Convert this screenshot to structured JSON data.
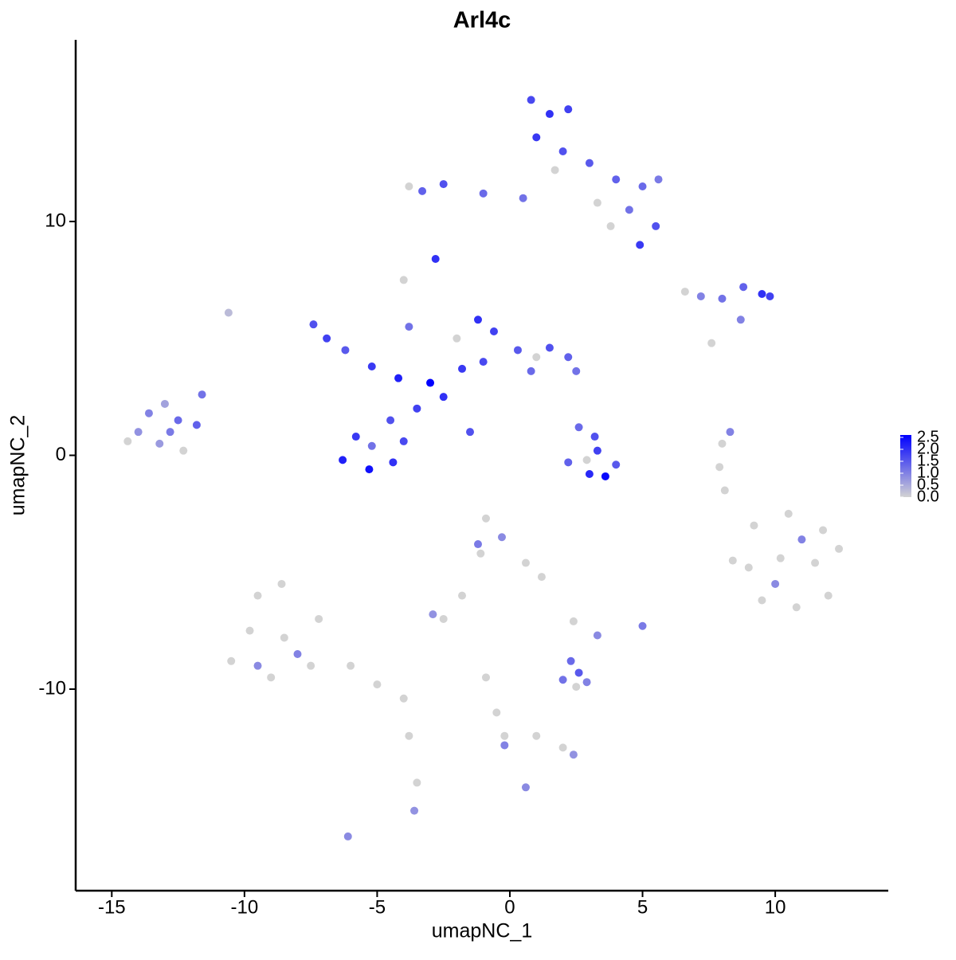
{
  "chart_data": {
    "type": "scatter",
    "title": "Arl4c",
    "x_label": "umapNC_1",
    "y_label": "umapNC_2",
    "xlim": [
      -16.36,
      14.26
    ],
    "ylim": [
      -18.62,
      17.77
    ],
    "xticks": [
      -15,
      -10,
      -5,
      0,
      5,
      10
    ],
    "yticks": [
      -10,
      0,
      10
    ],
    "color_low": "#d3d3d3",
    "color_high": "#0000ff",
    "color_lim": [
      0,
      2.6
    ],
    "color_ticks": [
      0.0,
      0.5,
      1.0,
      1.5,
      2.0,
      2.5
    ],
    "color_tick_labels": [
      "0.0",
      "0.5",
      "1.0",
      "1.5",
      "2.0",
      "2.5"
    ],
    "x": [
      9.2,
      10.5,
      11.8,
      9.0,
      10.2,
      11.5,
      12.4,
      9.5,
      10.8,
      12.0,
      8.4,
      10.0,
      11.0,
      -9.5,
      -8.6,
      -9.8,
      -8.5,
      -7.2,
      -10.5,
      -9.0,
      -7.5,
      -6.0,
      -5.0,
      -4.0,
      -3.8,
      -3.5,
      -3.6,
      -8.0,
      -9.5,
      -0.9,
      -0.3,
      -1.1,
      0.6,
      1.2,
      -1.8,
      -2.5,
      -2.9,
      -1.2,
      -0.9,
      -0.5,
      -0.2,
      1.0,
      2.0,
      2.4,
      -0.2,
      -6.1,
      0.6,
      5.0,
      3.3,
      2.4,
      -10.6,
      8.0,
      7.9,
      8.3,
      8.1,
      2.0,
      2.6,
      2.9,
      2.3,
      2.5,
      -14.0,
      -13.6,
      -13.0,
      -12.5,
      -13.2,
      -12.3,
      -14.4,
      -11.6,
      -11.8,
      -12.8,
      2.6,
      3.2,
      2.2,
      3.0,
      3.6,
      4.0,
      3.3,
      2.9,
      -7.4,
      -6.9,
      -6.2,
      -5.2,
      -4.2,
      -3.0,
      -2.5,
      -4.0,
      -3.8,
      -3.5,
      -4.5,
      -5.8,
      -6.3,
      -5.3,
      -4.4,
      -4.0,
      -5.2,
      -1.5,
      -1.2,
      -0.6,
      -1.0,
      0.3,
      1.5,
      2.2,
      2.5,
      -1.8,
      0.8,
      -2.0,
      1.0,
      0.8,
      1.5,
      2.2,
      1.0,
      2.0,
      1.7,
      3.0,
      4.0,
      5.0,
      5.6,
      4.5,
      5.5,
      4.9,
      3.8,
      0.5,
      -1.0,
      -2.5,
      -3.3,
      -3.8,
      -2.8,
      3.3,
      6.6,
      7.2,
      8.0,
      8.8,
      9.5,
      9.8,
      8.7,
      7.6
    ],
    "y": [
      -3.0,
      -2.5,
      -3.2,
      -4.8,
      -4.4,
      -4.6,
      -4.0,
      -6.2,
      -6.5,
      -6.0,
      -4.5,
      -5.5,
      -3.6,
      -6.0,
      -5.5,
      -7.5,
      -7.8,
      -7.0,
      -8.8,
      -9.5,
      -9.0,
      -9.0,
      -9.8,
      -10.4,
      -12.0,
      -14.0,
      -15.2,
      -8.5,
      -9.0,
      -2.7,
      -3.5,
      -4.2,
      -4.6,
      -5.2,
      -6.0,
      -7.0,
      -6.8,
      -3.8,
      -9.5,
      -11.0,
      -12.0,
      -12.0,
      -12.5,
      -12.8,
      -12.4,
      -16.3,
      -14.2,
      -7.3,
      -7.7,
      -7.1,
      6.1,
      0.5,
      -0.5,
      1.0,
      -1.5,
      -9.6,
      -9.3,
      -9.7,
      -8.8,
      -9.9,
      1.0,
      1.8,
      2.2,
      1.5,
      0.5,
      0.2,
      0.6,
      2.6,
      1.3,
      1.0,
      1.2,
      0.8,
      -0.3,
      -0.8,
      -0.9,
      -0.4,
      0.2,
      -0.2,
      5.6,
      5.0,
      4.5,
      3.8,
      3.3,
      3.1,
      2.5,
      7.5,
      5.5,
      2.0,
      1.5,
      0.8,
      -0.2,
      -0.6,
      -0.3,
      0.6,
      0.4,
      1.0,
      5.8,
      5.3,
      4.0,
      4.5,
      4.6,
      4.2,
      3.6,
      3.7,
      3.6,
      5.0,
      4.2,
      15.2,
      14.6,
      14.8,
      13.6,
      13.0,
      12.2,
      12.5,
      11.8,
      11.5,
      11.8,
      10.5,
      9.8,
      9.0,
      9.8,
      11.0,
      11.2,
      11.6,
      11.3,
      11.5,
      8.4,
      10.8,
      7.0,
      6.8,
      6.7,
      7.2,
      6.9,
      6.8,
      5.8,
      4.8
    ],
    "values": [
      0,
      0,
      0,
      0,
      0,
      0,
      0,
      0,
      0,
      0,
      0,
      0.9,
      1.0,
      0,
      0,
      0,
      0,
      0,
      0,
      0,
      0,
      0,
      0,
      0,
      0,
      0,
      0.8,
      1.0,
      0.9,
      0,
      0.9,
      0,
      0,
      0,
      0,
      0,
      0.8,
      1.1,
      0,
      0,
      0,
      0,
      0,
      0.8,
      1.0,
      0.9,
      0.9,
      1.1,
      0.9,
      0,
      0.3,
      0,
      0,
      1.0,
      0,
      1.2,
      1.5,
      1.0,
      1.3,
      0,
      0.8,
      1.0,
      0.6,
      1.3,
      0.7,
      0,
      0,
      1.2,
      1.4,
      1.1,
      1.3,
      1.6,
      1.4,
      2.1,
      2.5,
      1.5,
      1.8,
      0,
      1.6,
      1.8,
      1.5,
      1.9,
      2.2,
      2.6,
      2.0,
      0,
      1.2,
      1.8,
      1.6,
      1.9,
      2.2,
      2.4,
      2.0,
      1.7,
      1.2,
      1.6,
      2.0,
      1.8,
      1.7,
      1.5,
      1.6,
      1.4,
      1.2,
      1.9,
      1.3,
      0,
      0,
      1.7,
      2.0,
      1.8,
      1.9,
      1.6,
      0,
      1.5,
      1.4,
      1.3,
      1.1,
      1.2,
      1.6,
      1.9,
      0,
      1.2,
      1.3,
      1.6,
      1.4,
      0,
      2.0,
      0,
      0,
      1.0,
      1.2,
      1.4,
      2.0,
      1.8,
      1.0,
      0
    ]
  }
}
